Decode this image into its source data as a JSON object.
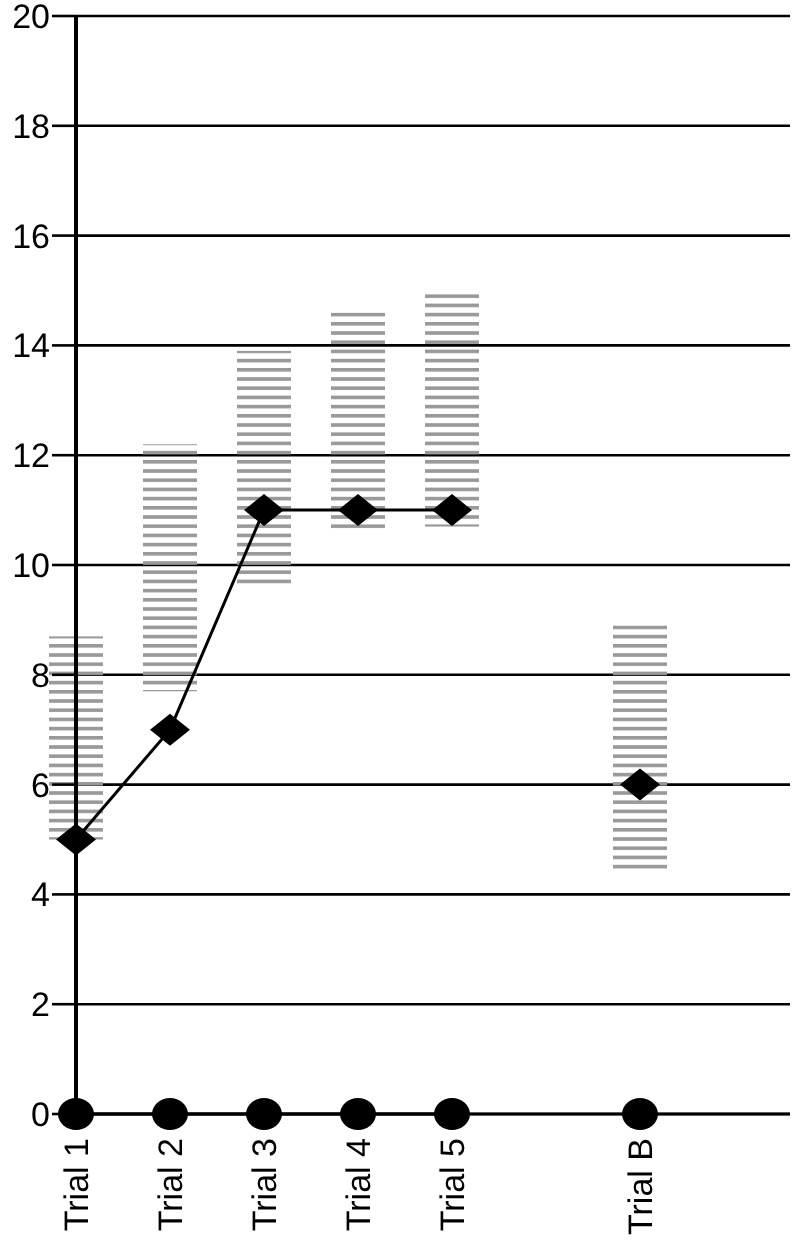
{
  "chart_data": {
    "type": "bar",
    "categories": [
      "Trial 1",
      "Trial 2",
      "Trial 3",
      "Trial 4",
      "Trial 5",
      null,
      "Trial B",
      null
    ],
    "series": [
      {
        "color": "#999999",
        "base": [
          5,
          7.7,
          9.6,
          10.6,
          10.7,
          null,
          4.4,
          null
        ],
        "values": [
          3.7,
          4.5,
          4.3,
          4.0,
          4.3,
          null,
          4.5,
          null
        ]
      },
      {
        "type": "line",
        "color": "#000000",
        "marker": "diamond",
        "values": [
          5,
          7,
          11,
          11,
          11,
          null,
          6,
          null
        ]
      },
      {
        "type": "line",
        "color": "#000000",
        "marker": "circle",
        "values": [
          0,
          0,
          0,
          0,
          0,
          null,
          0,
          null
        ]
      }
    ],
    "ylim": [
      0,
      20
    ],
    "yticks": [
      0,
      2,
      4,
      6,
      8,
      10,
      12,
      14,
      16,
      18,
      20
    ],
    "grid": "y"
  }
}
